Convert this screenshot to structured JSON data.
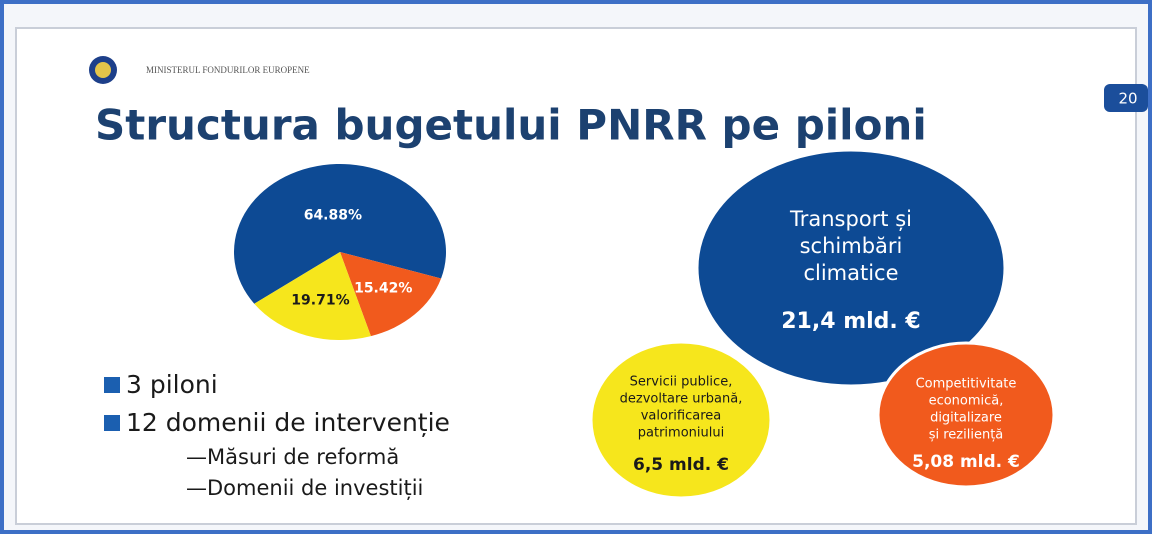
{
  "header": {
    "ministry": "MINISTERUL FONDURILOR EUROPENE",
    "page_number": "20",
    "title": "Structura bugetului PNRR pe piloni"
  },
  "chart_data": {
    "type": "pie",
    "values": [
      64.88,
      15.42,
      19.71
    ],
    "value_labels": [
      "64.88%",
      "15.42%",
      "19.71%"
    ],
    "colors": [
      "#0d4a94",
      "#f15a1d",
      "#f6e61c"
    ],
    "label_colors": [
      "#ffffff",
      "#ffffff",
      "#1b1b1b"
    ]
  },
  "bullets": [
    "3 piloni",
    "12 domenii de intervenție"
  ],
  "sub_bullets": [
    "—Măsuri de reformă",
    "—Domenii de investiții"
  ],
  "pillars": [
    {
      "lines": [
        "Transport și",
        "schimbări",
        "climatice"
      ],
      "amount": "21,4 mld. €"
    },
    {
      "lines": [
        "Servicii publice,",
        "dezvoltare urbană,",
        "valorificarea",
        "patrimoniului"
      ],
      "amount": "6,5 mld. €"
    },
    {
      "lines": [
        "Competitivitate",
        "economică,",
        "digitalizare",
        "și reziliență"
      ],
      "amount": "5,08 mld. €"
    }
  ]
}
